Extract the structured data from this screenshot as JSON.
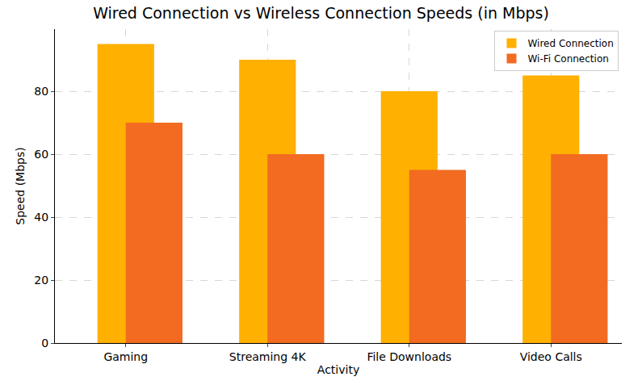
{
  "chart_data": {
    "type": "bar",
    "title": "Wired Connection vs Wireless Connection Speeds (in Mbps)",
    "x_label": "Activity",
    "y_label": "Speed (Mbps)",
    "categories": [
      "Gaming",
      "Streaming 4K",
      "File Downloads",
      "Video Calls"
    ],
    "series": [
      {
        "name": "Wired Connection",
        "color": "#FFB000",
        "values": [
          95,
          90,
          80,
          85
        ]
      },
      {
        "name": "Wi-Fi Connection",
        "color": "#F26B21",
        "values": [
          70,
          60,
          55,
          60
        ]
      }
    ],
    "ylim": [
      0,
      99.75
    ],
    "yticks": [
      0,
      20,
      40,
      60,
      80
    ],
    "grid": true,
    "legend": "upper right"
  }
}
